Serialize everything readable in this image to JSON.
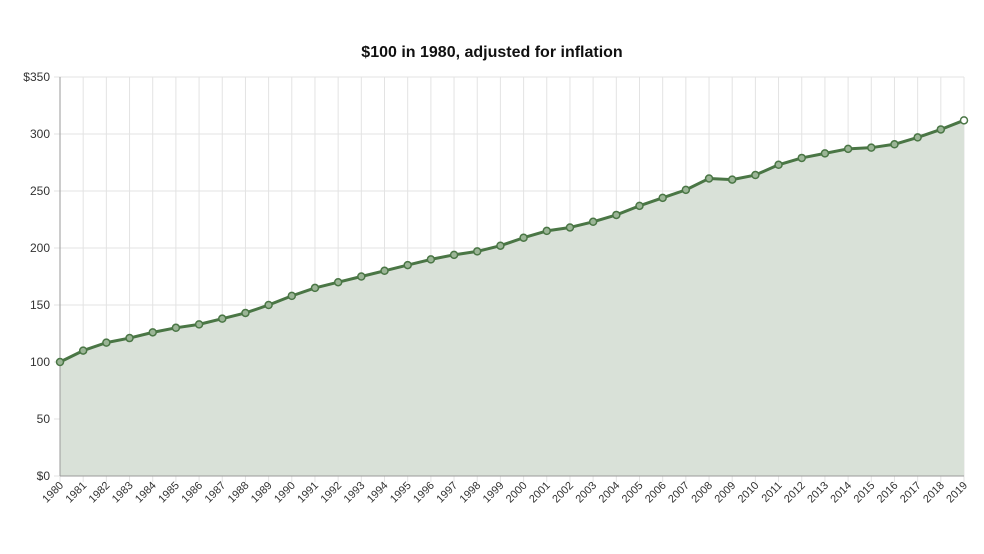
{
  "chart_data": {
    "type": "area",
    "title": "$100 in 1980, adjusted for inflation",
    "xlabel": "",
    "ylabel": "",
    "ylim": [
      0,
      350
    ],
    "y_ticks": [
      0,
      50,
      100,
      150,
      200,
      250,
      300,
      350
    ],
    "y_tick_labels": [
      "$0",
      "50",
      "100",
      "150",
      "200",
      "250",
      "300",
      "$350"
    ],
    "grid": true,
    "categories": [
      "1980",
      "1981",
      "1982",
      "1983",
      "1984",
      "1985",
      "1986",
      "1987",
      "1988",
      "1989",
      "1990",
      "1991",
      "1992",
      "1993",
      "1994",
      "1995",
      "1996",
      "1997",
      "1998",
      "1999",
      "2000",
      "2001",
      "2002",
      "2003",
      "2004",
      "2005",
      "2006",
      "2007",
      "2008",
      "2009",
      "2010",
      "2011",
      "2012",
      "2013",
      "2014",
      "2015",
      "2016",
      "2017",
      "2018",
      "2019"
    ],
    "series": [
      {
        "values": [
          100,
          110,
          117,
          121,
          126,
          130,
          133,
          138,
          143,
          150,
          158,
          165,
          170,
          175,
          180,
          185,
          190,
          194,
          197,
          202,
          209,
          215,
          218,
          223,
          229,
          237,
          244,
          251,
          261,
          260,
          264,
          273,
          279,
          283,
          287,
          288,
          291,
          297,
          304,
          312
        ]
      }
    ],
    "colors": {
      "line": "#4a7645",
      "fill": "#d9e1d8",
      "marker_fill": "#9bb596",
      "grid": "#e3e3e3",
      "axis": "#9a9a9a",
      "tick_text": "#333333"
    }
  }
}
